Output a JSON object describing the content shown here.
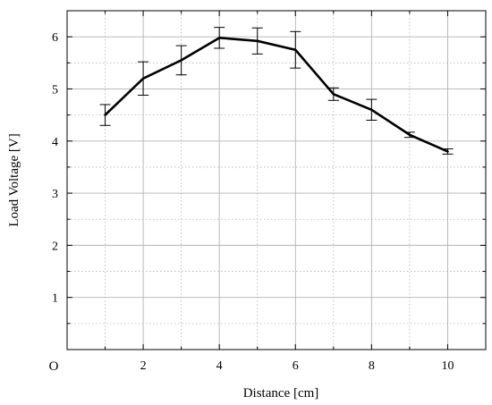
{
  "chart_data": {
    "type": "line",
    "title": "",
    "xlabel": "Distance [cm]",
    "ylabel": "Load Voltage [V]",
    "origin_label": "O",
    "xlim": [
      0,
      11
    ],
    "ylim": [
      0,
      6.5
    ],
    "x_ticks": [
      2,
      4,
      6,
      8,
      10
    ],
    "y_ticks": [
      1,
      2,
      3,
      4,
      5,
      6
    ],
    "grid": true,
    "grid_minor": true,
    "legend": "none",
    "line_color": "#000000",
    "grid_color": "#b3b3b3",
    "series": [
      {
        "x": [
          1,
          2,
          3,
          4,
          5,
          6,
          7,
          8,
          9,
          10
        ],
        "y": [
          4.5,
          5.2,
          5.55,
          5.98,
          5.92,
          5.75,
          4.9,
          4.6,
          4.12,
          3.8
        ],
        "error": [
          0.2,
          0.32,
          0.28,
          0.2,
          0.25,
          0.35,
          0.12,
          0.2,
          0.05,
          0.05
        ]
      }
    ]
  }
}
